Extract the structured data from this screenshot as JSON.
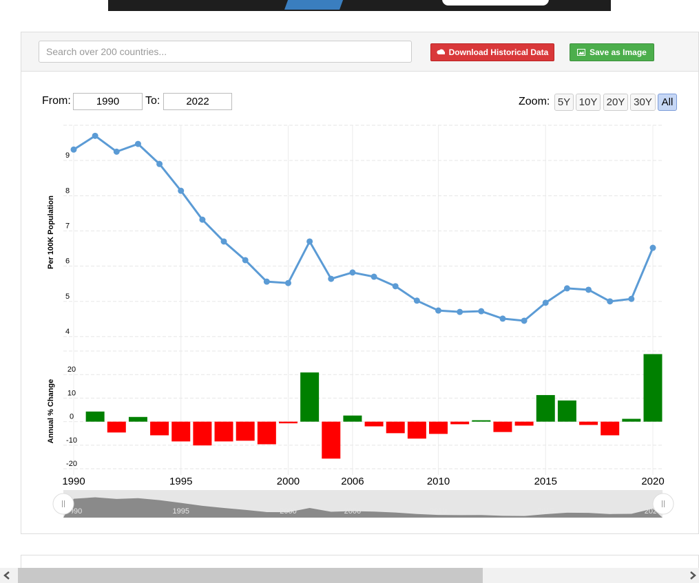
{
  "search_placeholder": "Search over 200 countries...",
  "buttons": {
    "download": "Download Historical Data",
    "save": "Save as Image"
  },
  "range": {
    "from_label": "From:",
    "from": "1990",
    "to_label": "To:",
    "to": "2022"
  },
  "zoom": {
    "label": "Zoom:",
    "options": [
      "5Y",
      "10Y",
      "20Y",
      "30Y",
      "All"
    ],
    "selected": 4
  },
  "navigator_labels": [
    "1990",
    "1995",
    "2000",
    "2006",
    "2010",
    "2015",
    "2020"
  ],
  "chart_data": [
    {
      "type": "line",
      "y_label": "Per 100K Population",
      "series": [
        {
          "color": "#5b9bd5",
          "values": [
            9.31,
            9.7,
            9.25,
            9.47,
            8.9,
            8.14,
            7.32,
            6.7,
            6.17,
            5.56,
            5.52,
            6.7,
            5.64,
            5.82,
            5.7,
            5.43,
            5.02,
            4.74,
            4.7,
            4.72,
            4.51,
            4.45,
            4.96,
            5.37,
            5.33,
            5.0,
            5.07,
            6.52
          ]
        }
      ],
      "ylim": [
        4,
        10
      ],
      "yticks": [
        4,
        5,
        6,
        7,
        8,
        9
      ],
      "grid": true
    },
    {
      "type": "bar",
      "y_label": "Annual % Change",
      "categories": [
        "1990",
        null,
        null,
        null,
        null,
        "1995",
        null,
        null,
        null,
        null,
        "2000",
        null,
        null,
        "2006",
        null,
        null,
        null,
        "2010",
        null,
        null,
        null,
        null,
        "2015",
        null,
        null,
        null,
        null,
        "2020"
      ],
      "values": [
        null,
        4.3,
        -4.6,
        2.0,
        -5.8,
        -8.4,
        -10.1,
        -8.4,
        -8.1,
        -9.6,
        -0.7,
        20.9,
        -15.7,
        2.6,
        -2.0,
        -4.9,
        -7.2,
        -5.2,
        -1.1,
        0.6,
        -4.4,
        -1.7,
        11.3,
        9.0,
        -1.4,
        -5.8,
        1.2,
        28.7
      ],
      "positive_color": "#008000",
      "negative_color": "#ff0000",
      "ylim": [
        -20,
        30
      ],
      "yticks": [
        -20,
        -10,
        0,
        10,
        20
      ],
      "grid": true
    }
  ]
}
